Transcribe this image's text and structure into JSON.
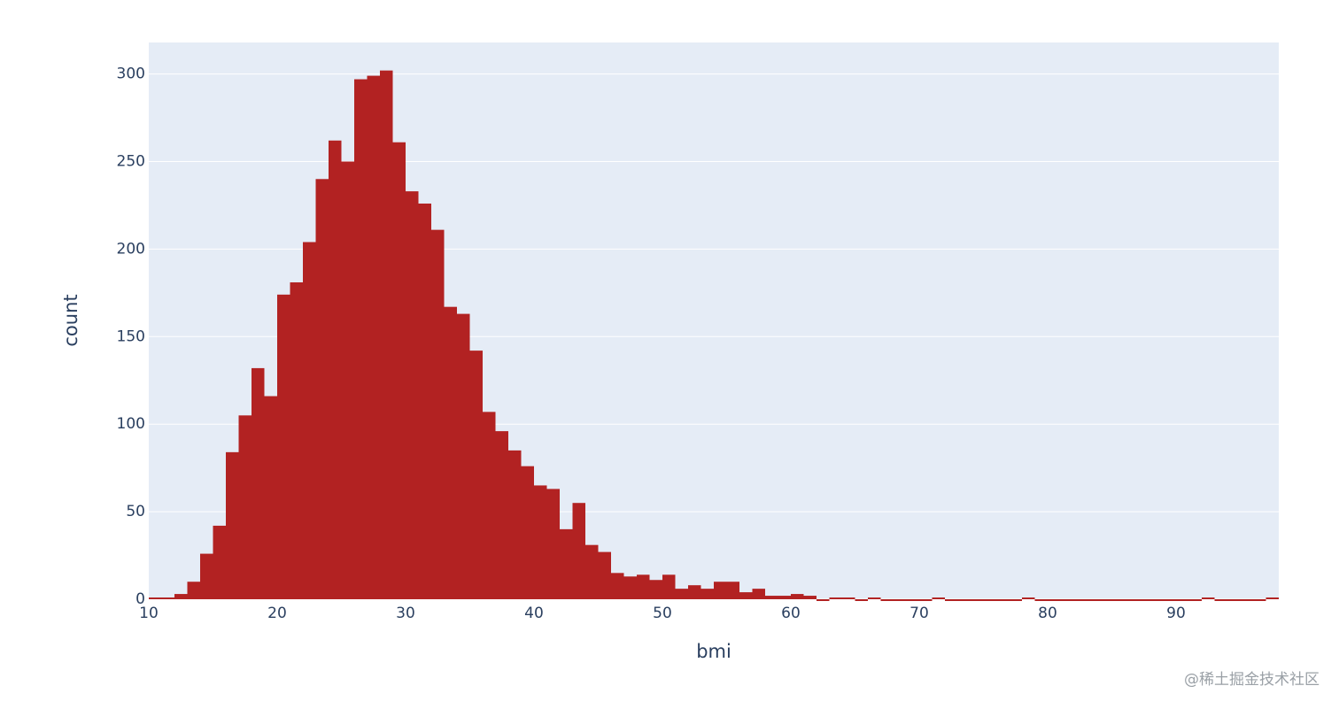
{
  "chart_data": {
    "type": "histogram",
    "x_label": "bmi",
    "y_label": "count",
    "bins": [
      10,
      11,
      12,
      13,
      14,
      15,
      16,
      17,
      18,
      19,
      20,
      21,
      22,
      23,
      24,
      25,
      26,
      27,
      28,
      29,
      30,
      31,
      32,
      33,
      34,
      35,
      36,
      37,
      38,
      39,
      40,
      41,
      42,
      43,
      44,
      45,
      46,
      47,
      48,
      49,
      50,
      51,
      52,
      53,
      54,
      55,
      56,
      57,
      58,
      59,
      60,
      61,
      62,
      63,
      64,
      65,
      66,
      67,
      68,
      69,
      70,
      71,
      72,
      73,
      74,
      75,
      76,
      77,
      78,
      79,
      80,
      81,
      82,
      83,
      84,
      85,
      86,
      87,
      88,
      89,
      90,
      91,
      92,
      93,
      94,
      95,
      96,
      97,
      98
    ],
    "values": [
      1,
      1,
      3,
      10,
      26,
      42,
      84,
      105,
      132,
      116,
      174,
      181,
      204,
      240,
      262,
      250,
      297,
      299,
      302,
      261,
      233,
      226,
      211,
      167,
      163,
      142,
      107,
      96,
      85,
      76,
      65,
      63,
      40,
      55,
      31,
      27,
      15,
      13,
      14,
      11,
      14,
      6,
      8,
      6,
      10,
      10,
      4,
      6,
      2,
      2,
      3,
      2,
      0,
      1,
      1,
      0,
      1,
      0,
      0,
      0,
      0,
      1,
      0,
      0,
      0,
      0,
      0,
      0,
      1,
      0,
      0,
      0,
      0,
      0,
      0,
      0,
      0,
      0,
      0,
      0,
      0,
      0,
      1,
      0,
      0,
      0,
      0,
      1
    ],
    "color": "#b22222",
    "xlim": [
      10,
      98
    ],
    "xticks": [
      10,
      20,
      30,
      40,
      50,
      60,
      70,
      80,
      90
    ],
    "ylim": [
      0,
      318
    ],
    "yticks": [
      0,
      50,
      100,
      150,
      200,
      250,
      300
    ],
    "grid": true
  },
  "watermark": "@稀土掘金技术社区"
}
